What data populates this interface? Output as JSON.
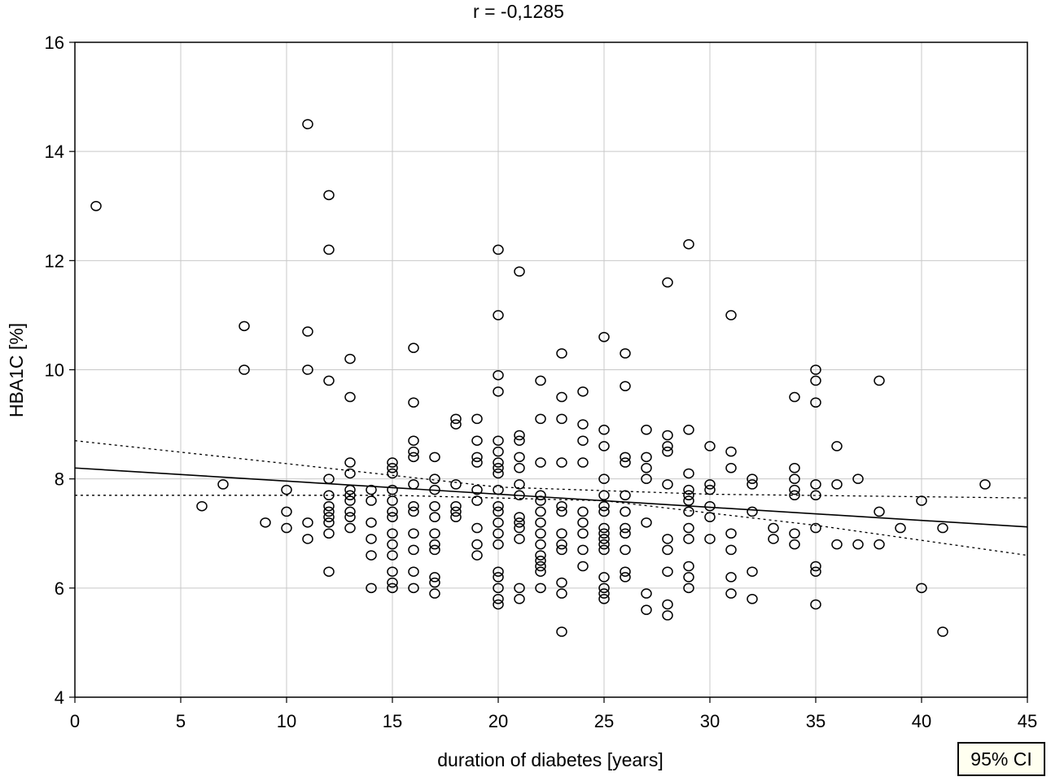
{
  "chart_data": {
    "type": "scatter",
    "title": "r = -0,1285",
    "xlabel": "duration of diabetes [years]",
    "ylabel": "HBA1C [%]",
    "xlim": [
      0,
      45
    ],
    "ylim": [
      4,
      16
    ],
    "xticks": [
      0,
      5,
      10,
      15,
      20,
      25,
      30,
      35,
      40,
      45
    ],
    "yticks": [
      4,
      6,
      8,
      10,
      12,
      14,
      16
    ],
    "grid": true,
    "legend": "95% CI",
    "legend_position": "bottom-right",
    "regression": {
      "intercept": 8.2,
      "slope": -0.024
    },
    "ci_lower": [
      [
        0,
        7.7
      ],
      [
        15,
        7.7
      ],
      [
        25,
        7.6
      ],
      [
        35,
        7.15
      ],
      [
        45,
        6.6
      ]
    ],
    "ci_upper": [
      [
        0,
        8.7
      ],
      [
        10,
        8.28
      ],
      [
        20,
        7.85
      ],
      [
        30,
        7.72
      ],
      [
        45,
        7.65
      ]
    ],
    "points": [
      [
        1,
        13
      ],
      [
        6,
        7.5
      ],
      [
        7,
        7.9
      ],
      [
        8,
        10.8
      ],
      [
        8,
        10
      ],
      [
        9,
        7.2
      ],
      [
        10,
        7.8
      ],
      [
        10,
        7.4
      ],
      [
        10,
        7.1
      ],
      [
        11,
        14.5
      ],
      [
        11,
        10.7
      ],
      [
        11,
        10
      ],
      [
        11,
        7.2
      ],
      [
        11,
        6.9
      ],
      [
        12,
        13.2
      ],
      [
        12,
        12.2
      ],
      [
        12,
        9.8
      ],
      [
        12,
        8
      ],
      [
        12,
        7.7
      ],
      [
        12,
        7.5
      ],
      [
        12,
        7.4
      ],
      [
        12,
        7.3
      ],
      [
        12,
        7.2
      ],
      [
        12,
        7
      ],
      [
        12,
        6.3
      ],
      [
        13,
        10.2
      ],
      [
        13,
        9.5
      ],
      [
        13,
        8.3
      ],
      [
        13,
        8.1
      ],
      [
        13,
        7.8
      ],
      [
        13,
        7.7
      ],
      [
        13,
        7.6
      ],
      [
        13,
        7.4
      ],
      [
        13,
        7.3
      ],
      [
        13,
        7.1
      ],
      [
        14,
        7.8
      ],
      [
        14,
        7.6
      ],
      [
        14,
        7.2
      ],
      [
        14,
        6.9
      ],
      [
        14,
        6.6
      ],
      [
        14,
        6
      ],
      [
        15,
        8.3
      ],
      [
        15,
        8.2
      ],
      [
        15,
        8.1
      ],
      [
        15,
        7.8
      ],
      [
        15,
        7.6
      ],
      [
        15,
        7.4
      ],
      [
        15,
        7.3
      ],
      [
        15,
        7
      ],
      [
        15,
        6.8
      ],
      [
        15,
        6.6
      ],
      [
        15,
        6.3
      ],
      [
        15,
        6.1
      ],
      [
        15,
        6
      ],
      [
        16,
        10.4
      ],
      [
        16,
        9.4
      ],
      [
        16,
        8.7
      ],
      [
        16,
        8.5
      ],
      [
        16,
        8.4
      ],
      [
        16,
        7.9
      ],
      [
        16,
        7.5
      ],
      [
        16,
        7.4
      ],
      [
        16,
        7
      ],
      [
        16,
        6.7
      ],
      [
        16,
        6.3
      ],
      [
        16,
        6
      ],
      [
        17,
        8.4
      ],
      [
        17,
        8
      ],
      [
        17,
        7.8
      ],
      [
        17,
        7.5
      ],
      [
        17,
        7.3
      ],
      [
        17,
        7
      ],
      [
        17,
        6.8
      ],
      [
        17,
        6.7
      ],
      [
        17,
        6.2
      ],
      [
        17,
        6.1
      ],
      [
        17,
        5.9
      ],
      [
        18,
        9.1
      ],
      [
        18,
        9
      ],
      [
        18,
        7.9
      ],
      [
        18,
        7.5
      ],
      [
        18,
        7.4
      ],
      [
        18,
        7.3
      ],
      [
        19,
        9.1
      ],
      [
        19,
        8.7
      ],
      [
        19,
        8.4
      ],
      [
        19,
        8.3
      ],
      [
        19,
        7.8
      ],
      [
        19,
        7.6
      ],
      [
        19,
        7.1
      ],
      [
        19,
        6.8
      ],
      [
        19,
        6.6
      ],
      [
        20,
        12.2
      ],
      [
        20,
        11
      ],
      [
        20,
        9.9
      ],
      [
        20,
        9.6
      ],
      [
        20,
        8.7
      ],
      [
        20,
        8.5
      ],
      [
        20,
        8.3
      ],
      [
        20,
        8.2
      ],
      [
        20,
        8.1
      ],
      [
        20,
        7.8
      ],
      [
        20,
        7.5
      ],
      [
        20,
        7.4
      ],
      [
        20,
        7.2
      ],
      [
        20,
        7
      ],
      [
        20,
        6.8
      ],
      [
        20,
        6.3
      ],
      [
        20,
        6.2
      ],
      [
        20,
        6
      ],
      [
        20,
        5.8
      ],
      [
        20,
        5.7
      ],
      [
        21,
        11.8
      ],
      [
        21,
        8.8
      ],
      [
        21,
        8.7
      ],
      [
        21,
        8.4
      ],
      [
        21,
        8.2
      ],
      [
        21,
        7.9
      ],
      [
        21,
        7.7
      ],
      [
        21,
        7.3
      ],
      [
        21,
        7.2
      ],
      [
        21,
        7.1
      ],
      [
        21,
        6.9
      ],
      [
        21,
        6
      ],
      [
        21,
        5.8
      ],
      [
        22,
        9.8
      ],
      [
        22,
        9.1
      ],
      [
        22,
        8.3
      ],
      [
        22,
        7.7
      ],
      [
        22,
        7.6
      ],
      [
        22,
        7.4
      ],
      [
        22,
        7.2
      ],
      [
        22,
        7
      ],
      [
        22,
        6.8
      ],
      [
        22,
        6.6
      ],
      [
        22,
        6.5
      ],
      [
        22,
        6.4
      ],
      [
        22,
        6.3
      ],
      [
        22,
        6
      ],
      [
        23,
        10.3
      ],
      [
        23,
        9.5
      ],
      [
        23,
        9.1
      ],
      [
        23,
        8.3
      ],
      [
        23,
        7.5
      ],
      [
        23,
        7.4
      ],
      [
        23,
        7
      ],
      [
        23,
        6.8
      ],
      [
        23,
        6.7
      ],
      [
        23,
        6.1
      ],
      [
        23,
        5.9
      ],
      [
        23,
        5.2
      ],
      [
        24,
        9.6
      ],
      [
        24,
        9
      ],
      [
        24,
        8.7
      ],
      [
        24,
        8.3
      ],
      [
        24,
        7.4
      ],
      [
        24,
        7.2
      ],
      [
        24,
        7
      ],
      [
        24,
        6.7
      ],
      [
        24,
        6.4
      ],
      [
        25,
        10.6
      ],
      [
        25,
        8.9
      ],
      [
        25,
        8.6
      ],
      [
        25,
        8
      ],
      [
        25,
        7.7
      ],
      [
        25,
        7.5
      ],
      [
        25,
        7.4
      ],
      [
        25,
        7.1
      ],
      [
        25,
        7
      ],
      [
        25,
        6.9
      ],
      [
        25,
        6.8
      ],
      [
        25,
        6.7
      ],
      [
        25,
        6.2
      ],
      [
        25,
        6
      ],
      [
        25,
        5.9
      ],
      [
        25,
        5.8
      ],
      [
        26,
        10.3
      ],
      [
        26,
        9.7
      ],
      [
        26,
        8.4
      ],
      [
        26,
        8.3
      ],
      [
        26,
        7.7
      ],
      [
        26,
        7.4
      ],
      [
        26,
        7.1
      ],
      [
        26,
        7
      ],
      [
        26,
        6.7
      ],
      [
        26,
        6.3
      ],
      [
        26,
        6.2
      ],
      [
        27,
        8.9
      ],
      [
        27,
        8.4
      ],
      [
        27,
        8.2
      ],
      [
        27,
        8
      ],
      [
        27,
        7.2
      ],
      [
        27,
        5.9
      ],
      [
        27,
        5.6
      ],
      [
        28,
        11.6
      ],
      [
        28,
        8.8
      ],
      [
        28,
        8.6
      ],
      [
        28,
        8.5
      ],
      [
        28,
        7.9
      ],
      [
        28,
        6.9
      ],
      [
        28,
        6.7
      ],
      [
        28,
        6.3
      ],
      [
        28,
        5.7
      ],
      [
        28,
        5.5
      ],
      [
        29,
        12.3
      ],
      [
        29,
        8.9
      ],
      [
        29,
        8.1
      ],
      [
        29,
        7.8
      ],
      [
        29,
        7.7
      ],
      [
        29,
        7.6
      ],
      [
        29,
        7.4
      ],
      [
        29,
        7.1
      ],
      [
        29,
        6.9
      ],
      [
        29,
        6.4
      ],
      [
        29,
        6.2
      ],
      [
        29,
        6
      ],
      [
        30,
        8.6
      ],
      [
        30,
        7.9
      ],
      [
        30,
        7.8
      ],
      [
        30,
        7.5
      ],
      [
        30,
        7.3
      ],
      [
        30,
        6.9
      ],
      [
        31,
        11
      ],
      [
        31,
        8.5
      ],
      [
        31,
        8.2
      ],
      [
        31,
        7
      ],
      [
        31,
        6.7
      ],
      [
        31,
        6.2
      ],
      [
        31,
        5.9
      ],
      [
        32,
        8
      ],
      [
        32,
        7.9
      ],
      [
        32,
        7.4
      ],
      [
        32,
        6.3
      ],
      [
        32,
        5.8
      ],
      [
        33,
        7.1
      ],
      [
        33,
        6.9
      ],
      [
        34,
        9.5
      ],
      [
        34,
        8.2
      ],
      [
        34,
        8
      ],
      [
        34,
        7.8
      ],
      [
        34,
        7.7
      ],
      [
        34,
        7
      ],
      [
        34,
        6.8
      ],
      [
        35,
        10
      ],
      [
        35,
        9.8
      ],
      [
        35,
        9.4
      ],
      [
        35,
        7.9
      ],
      [
        35,
        7.7
      ],
      [
        35,
        7.1
      ],
      [
        35,
        6.4
      ],
      [
        35,
        6.3
      ],
      [
        35,
        5.7
      ],
      [
        36,
        8.6
      ],
      [
        36,
        7.9
      ],
      [
        36,
        6.8
      ],
      [
        37,
        8
      ],
      [
        37,
        6.8
      ],
      [
        38,
        9.8
      ],
      [
        38,
        7.4
      ],
      [
        38,
        6.8
      ],
      [
        39,
        7.1
      ],
      [
        40,
        7.6
      ],
      [
        40,
        6
      ],
      [
        41,
        7.1
      ],
      [
        41,
        5.2
      ],
      [
        43,
        7.9
      ]
    ]
  }
}
